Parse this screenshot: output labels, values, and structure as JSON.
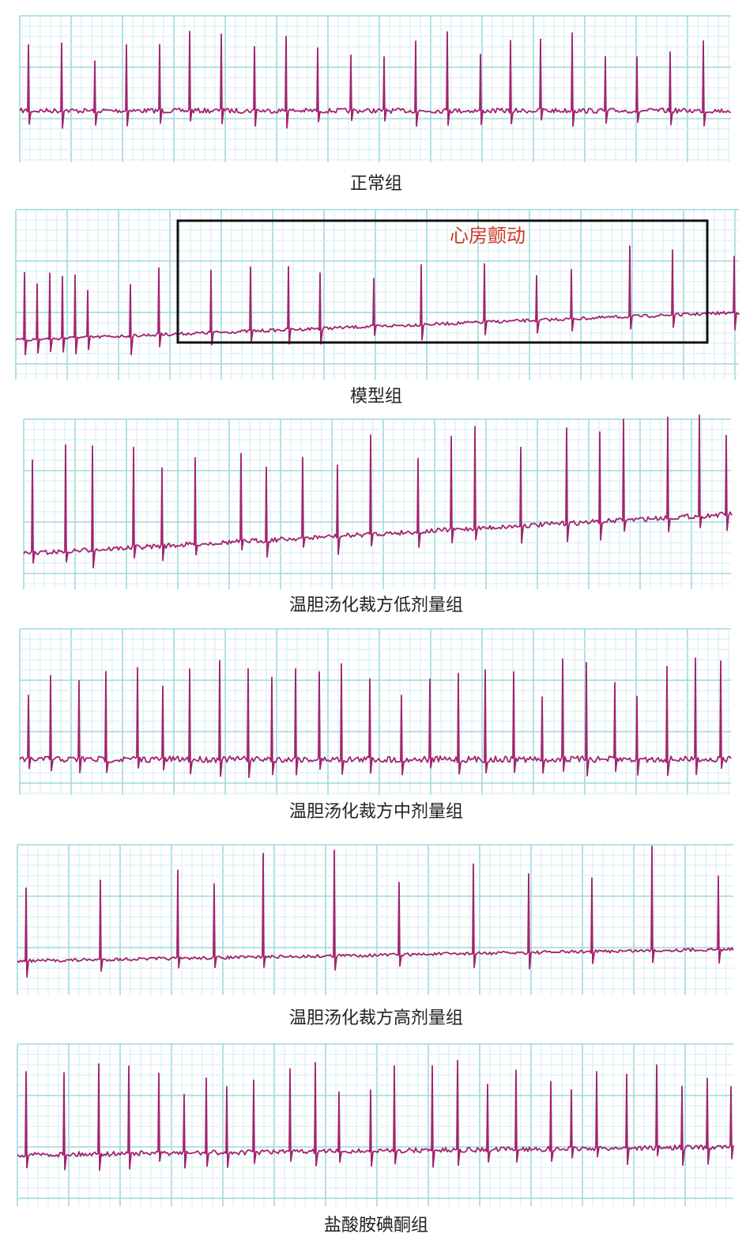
{
  "panels": [
    {
      "label": "正常组"
    },
    {
      "label": "模型组",
      "annotation": "心房颤动"
    },
    {
      "label": "温胆汤化裁方低剂量组"
    },
    {
      "label": "温胆汤化裁方中剂量组"
    },
    {
      "label": "温胆汤化裁方高剂量组"
    },
    {
      "label": "盐酸胺碘酮组"
    }
  ]
}
